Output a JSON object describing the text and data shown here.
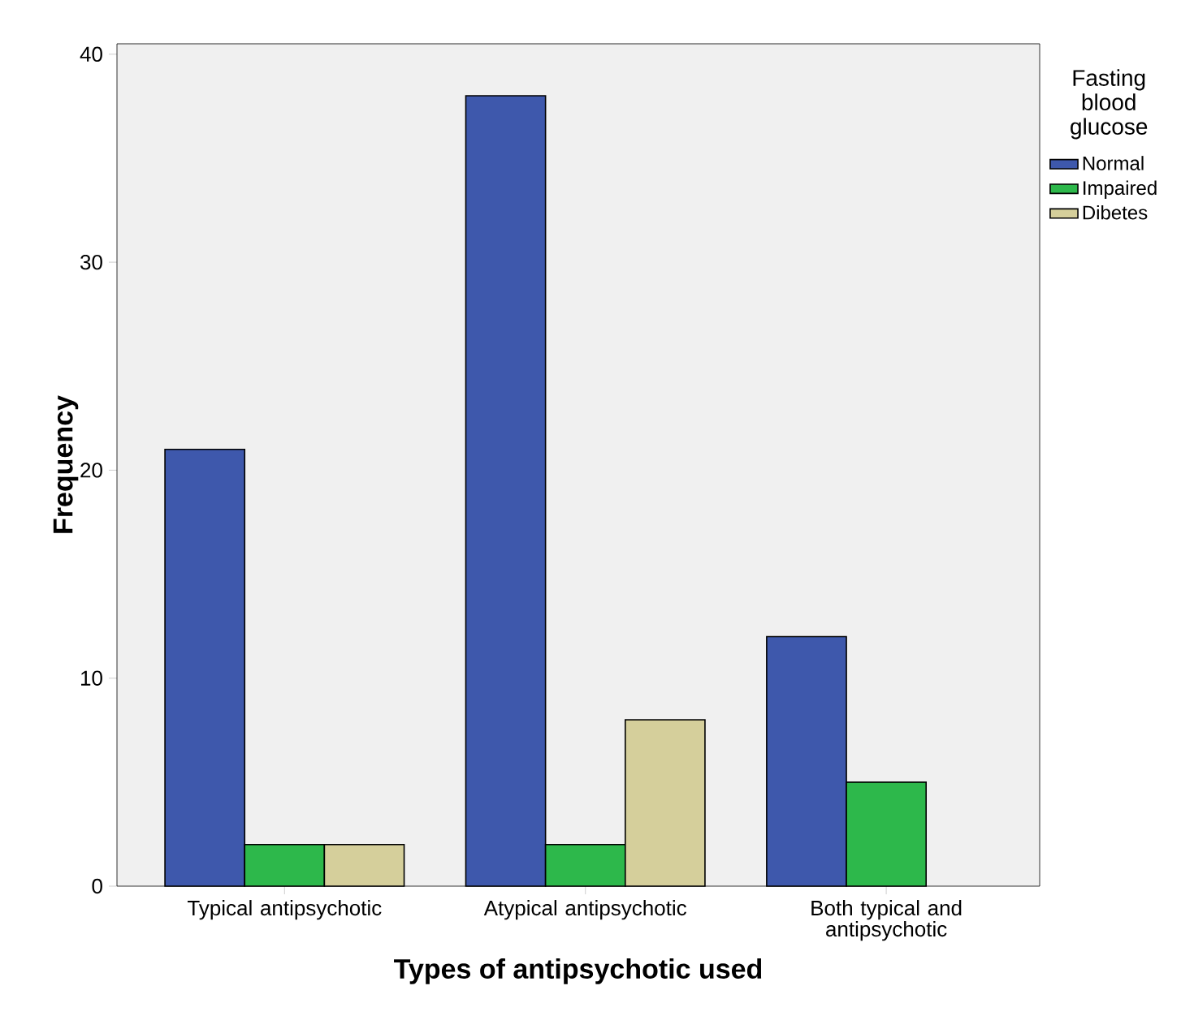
{
  "chart_data": {
    "type": "bar",
    "xlabel": "Types of antipsychotic used",
    "ylabel": "Frequency",
    "legend_title": "Fasting blood glucose",
    "categories": [
      "Typical antipsychotic",
      "Atypical antipsychotic",
      "Both typical and antipsychotic"
    ],
    "series": [
      {
        "name": "Normal",
        "color": "#3e58ac",
        "values": [
          21,
          38,
          12
        ]
      },
      {
        "name": "Impaired",
        "color": "#2db84b",
        "values": [
          2,
          2,
          5
        ]
      },
      {
        "name": "Dibetes",
        "color": "#d5cf9b",
        "values": [
          2,
          8,
          null
        ]
      }
    ],
    "ylim": [
      0,
      40.5
    ],
    "yticks": [
      0,
      10,
      20,
      30,
      40
    ],
    "grid": false,
    "legend": "right"
  }
}
